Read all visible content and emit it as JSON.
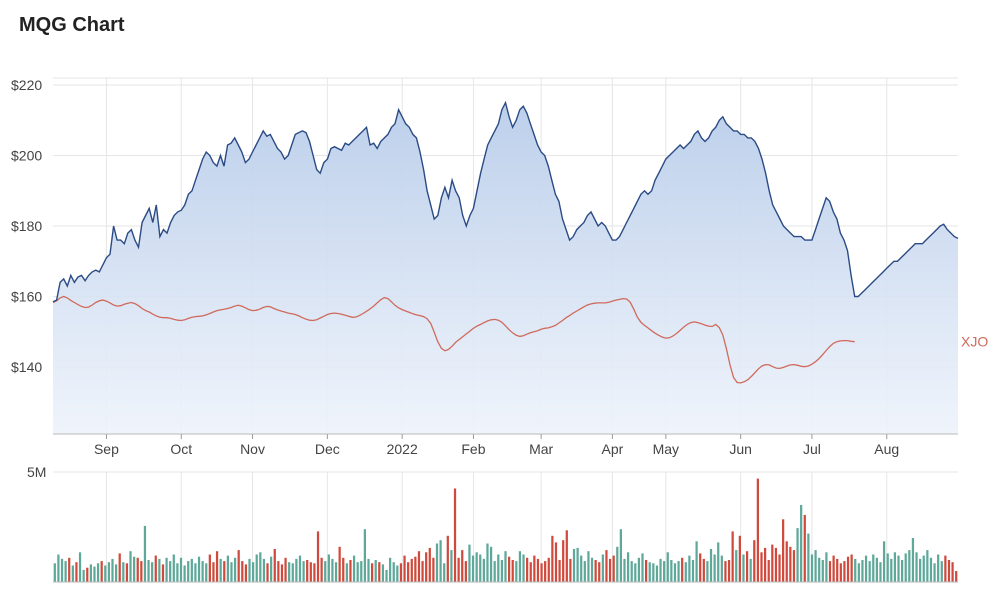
{
  "page": {
    "title": "MQG Chart"
  },
  "chart_data": [
    {
      "type": "line",
      "title": "MQG Chart",
      "ylim": [
        121,
        222
      ],
      "y_ticks": [
        "$220",
        "$200",
        "$180",
        "$160",
        "$140"
      ],
      "y_tick_values": [
        220,
        200,
        180,
        160,
        140
      ],
      "x_tick_labels": [
        "Sep",
        "Oct",
        "Nov",
        "Dec",
        "2022",
        "Feb",
        "Mar",
        "Apr",
        "May",
        "Jun",
        "Jul",
        "Aug"
      ],
      "x_tick_index": [
        15,
        36,
        56,
        77,
        98,
        118,
        137,
        157,
        172,
        193,
        213,
        234
      ],
      "grid": true,
      "series": [
        {
          "name": "MQG",
          "color": "#2b4b85",
          "values": [
            158.5,
            159,
            164,
            165,
            163,
            166,
            164,
            165.5,
            166,
            164.5,
            166,
            167,
            167.5,
            167,
            169,
            171,
            172,
            180,
            176,
            176,
            175,
            178,
            179,
            176,
            174,
            181,
            183,
            185,
            181,
            186,
            177,
            179,
            178,
            181,
            183,
            184,
            184.5,
            186,
            189,
            190,
            193,
            196,
            199,
            201,
            200,
            198,
            197,
            200,
            197,
            203,
            203.5,
            205,
            203,
            201,
            198,
            199,
            201,
            203,
            205,
            207,
            205.5,
            206,
            204,
            202,
            201,
            199,
            200,
            203,
            206,
            206.5,
            207,
            206.5,
            204,
            200,
            196,
            195,
            198,
            199,
            202,
            202.5,
            202,
            201.5,
            203.5,
            203,
            204,
            205,
            206,
            207,
            208,
            203,
            203.5,
            202,
            204,
            205,
            206,
            208,
            209,
            213,
            211,
            209,
            208,
            206,
            205,
            201,
            196,
            190,
            186,
            182,
            183,
            188,
            191,
            188,
            193,
            190,
            188,
            183,
            180,
            183,
            185,
            190,
            195,
            199,
            203,
            205,
            207,
            209,
            213,
            215,
            211,
            208,
            210,
            213,
            214,
            212,
            209,
            206,
            203,
            201,
            200,
            197,
            193,
            189,
            187,
            182,
            179,
            176,
            177,
            179,
            180,
            181,
            183,
            184,
            182,
            180,
            181,
            180,
            178,
            176,
            176,
            177,
            179,
            181,
            183,
            185,
            187,
            189,
            190,
            189,
            190,
            193,
            195,
            197,
            199,
            200,
            201,
            202,
            203,
            202,
            203,
            204,
            206,
            207,
            205,
            204,
            205,
            207,
            208,
            210,
            211,
            209,
            208,
            207,
            207,
            206,
            206,
            205,
            205,
            204,
            202,
            199,
            195,
            190,
            186,
            184,
            182,
            180,
            179,
            178,
            177,
            177,
            177,
            176,
            176,
            176,
            179,
            182,
            185,
            188,
            187,
            184,
            182,
            178,
            176,
            173,
            166,
            160,
            160,
            161,
            162,
            163,
            164,
            165,
            166,
            167,
            168,
            169,
            170,
            170,
            171,
            172,
            173,
            174,
            175,
            175,
            175,
            176,
            177,
            178,
            179,
            180,
            180.5,
            179,
            178,
            177,
            176.5
          ]
        },
        {
          "name": "XJO",
          "color": "#cf6b5c",
          "values": [
            158.3,
            158.8,
            159.6,
            160,
            159.6,
            158.9,
            158.3,
            157.7,
            157.2,
            156.9,
            157,
            157.6,
            158.3,
            158.8,
            159,
            158.7,
            158.2,
            157.6,
            157.3,
            157.4,
            157.8,
            158.1,
            158.3,
            158,
            157.4,
            156.6,
            156,
            155.6,
            155,
            154.5,
            154.1,
            154,
            154,
            153.8,
            153.5,
            153.3,
            153.2,
            153.4,
            153.8,
            154.1,
            154.3,
            154.4,
            154.5,
            154.8,
            155.2,
            155.6,
            156,
            156.2,
            156.4,
            156.6,
            156.9,
            157.3,
            157.5,
            157.3,
            156.8,
            156.3,
            156,
            156.1,
            156.4,
            156.9,
            157.2,
            157.1,
            156.6,
            156.2,
            155.9,
            155.6,
            155.3,
            155.1,
            154.9,
            154.5,
            154,
            153.6,
            153.3,
            153.2,
            153.4,
            153.9,
            154.4,
            154.9,
            155.2,
            155.3,
            155.2,
            155,
            154.7,
            154.4,
            154.1,
            154.2,
            154.6,
            155.2,
            155.8,
            156.5,
            157.3,
            158.2,
            159.1,
            159.7,
            159.4,
            158.5,
            157.5,
            156.8,
            156.3,
            155.9,
            155.5,
            155.1,
            154.8,
            154.6,
            154.3,
            153.7,
            152.4,
            149.9,
            147.2,
            145.3,
            144.6,
            145,
            145.9,
            147,
            147.8,
            148.6,
            149.4,
            150.2,
            151,
            151.6,
            152.1,
            152.6,
            153.1,
            153.4,
            153.5,
            153.3,
            152.7,
            151.7,
            150.6,
            149.7,
            149,
            148.7,
            148.9,
            149.3,
            149.7,
            150,
            150.3,
            150.7,
            151,
            151.1,
            151.4,
            151.8,
            152.5,
            153.2,
            154,
            154.6,
            155.3,
            155.9,
            156.5,
            157.1,
            157.6,
            157.9,
            158.1,
            158.2,
            158.2,
            158.2,
            158.4,
            158.7,
            159,
            159.2,
            159.4,
            159.3,
            158.4,
            156.4,
            154.2,
            152.7,
            151.8,
            151.1,
            150.3,
            149.6,
            149,
            148.5,
            148.2,
            148.3,
            148.8,
            149.5,
            150.4,
            151.3,
            152.1,
            152.6,
            152.8,
            152.6,
            152.3,
            151.9,
            151.6,
            151.5,
            152.1,
            151.2,
            149.1,
            145.2,
            140.6,
            137.1,
            135.6,
            135.5,
            135.8,
            136.4,
            137.3,
            138.4,
            139.5,
            140.3,
            140.7,
            140.6,
            140.1,
            139.7,
            139.6,
            139.9,
            140.3,
            140.6,
            140.7,
            140.5,
            140.2,
            140.1,
            140.3,
            140.8,
            141.5,
            142.4,
            143.5,
            144.7,
            145.8,
            146.7,
            147.2,
            147.4,
            147.5,
            147.5,
            147.3,
            147.2
          ]
        }
      ]
    },
    {
      "type": "bar",
      "title": "",
      "ylim": [
        0,
        5
      ],
      "y_ticks": [
        "5M"
      ],
      "unit": "M",
      "up_color": "#5ea89a",
      "down_color": "#cf4a3c",
      "values": [
        0.85,
        1.25,
        1.05,
        0.95,
        1.1,
        0.75,
        0.9,
        1.35,
        0.55,
        0.65,
        0.8,
        0.7,
        0.85,
        0.95,
        0.75,
        0.9,
        1.05,
        0.8,
        1.3,
        0.9,
        0.85,
        1.4,
        1.15,
        1.1,
        0.95,
        2.55,
        1.0,
        0.9,
        1.2,
        1.05,
        0.8,
        1.1,
        0.95,
        1.25,
        0.85,
        1.1,
        0.75,
        0.95,
        1.05,
        0.85,
        1.15,
        0.95,
        0.85,
        1.25,
        0.9,
        1.4,
        1.05,
        0.95,
        1.2,
        0.9,
        1.1,
        1.45,
        0.95,
        0.8,
        1.05,
        0.9,
        1.25,
        1.35,
        1.05,
        0.85,
        1.15,
        1.5,
        0.95,
        0.8,
        1.1,
        0.9,
        0.85,
        1.05,
        1.2,
        0.95,
        1.0,
        0.9,
        0.85,
        2.3,
        1.1,
        0.95,
        1.25,
        1.05,
        0.9,
        1.6,
        1.1,
        0.85,
        1.0,
        1.2,
        0.9,
        0.95,
        2.4,
        1.05,
        0.85,
        1.0,
        0.9,
        0.8,
        0.55,
        1.1,
        0.9,
        0.75,
        0.85,
        1.2,
        0.9,
        1.05,
        1.15,
        1.4,
        0.95,
        1.35,
        1.55,
        1.1,
        1.75,
        1.9,
        0.85,
        2.1,
        1.45,
        4.25,
        1.1,
        1.45,
        0.95,
        1.7,
        1.2,
        1.35,
        1.25,
        1.05,
        1.75,
        1.6,
        0.95,
        1.25,
        1.0,
        1.4,
        1.15,
        1.0,
        0.95,
        1.4,
        1.25,
        1.1,
        0.9,
        1.2,
        1.05,
        0.85,
        0.95,
        1.1,
        2.1,
        1.8,
        1.0,
        1.9,
        2.35,
        1.05,
        1.5,
        1.55,
        1.2,
        0.95,
        1.4,
        1.1,
        1.0,
        0.9,
        1.25,
        1.45,
        1.05,
        1.2,
        1.6,
        2.4,
        1.05,
        1.35,
        0.95,
        0.85,
        1.1,
        1.3,
        1.0,
        0.9,
        0.85,
        0.75,
        1.05,
        0.95,
        1.35,
        1.0,
        0.85,
        0.95,
        1.1,
        0.9,
        1.2,
        1.0,
        1.85,
        1.3,
        1.05,
        0.95,
        1.5,
        1.25,
        1.8,
        1.2,
        0.95,
        1.0,
        2.3,
        1.45,
        2.1,
        1.25,
        1.4,
        1.05,
        1.9,
        4.7,
        1.35,
        1.55,
        1.0,
        1.7,
        1.55,
        1.25,
        2.85,
        1.85,
        1.6,
        1.45,
        2.45,
        3.5,
        3.05,
        2.2,
        1.25,
        1.45,
        1.1,
        1.0,
        1.35,
        0.95,
        1.2,
        1.05,
        0.85,
        0.95,
        1.15,
        1.25,
        1.05,
        0.85,
        1.0,
        1.2,
        0.95,
        1.25,
        1.1,
        0.9,
        1.85,
        1.3,
        1.05,
        1.35,
        1.2,
        1.0,
        1.3,
        1.45,
        2.0,
        1.35,
        1.05,
        1.2,
        1.45,
        1.1,
        0.85,
        1.25,
        0.95,
        1.2,
        1.0,
        0.9,
        0.5
      ]
    }
  ]
}
